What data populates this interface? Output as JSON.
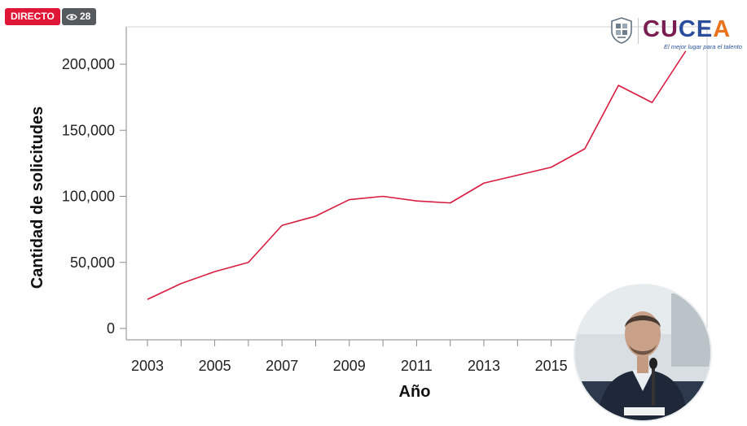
{
  "stream": {
    "live_label": "DIRECTO",
    "viewer_count": "28",
    "viewer_icon": "eye-icon"
  },
  "logo": {
    "brand_letters": [
      "C",
      "U",
      "C",
      "E",
      "A"
    ],
    "brand_colors": [
      "#7a1e52",
      "#7a1e52",
      "#2a4e9c",
      "#2a4e9c",
      "#e8731c"
    ],
    "tagline": "El mejor lugar para el talento"
  },
  "chart_data": {
    "type": "line",
    "title": "",
    "xlabel": "Año",
    "ylabel": "Cantidad de solicitudes",
    "x": [
      2003,
      2004,
      2005,
      2006,
      2007,
      2008,
      2009,
      2010,
      2011,
      2012,
      2013,
      2014,
      2015,
      2016,
      2017,
      2018,
      2019
    ],
    "series": [
      {
        "values": [
          22000,
          34000,
          43000,
          50000,
          78000,
          85000,
          97500,
          100000,
          96500,
          95000,
          110000,
          116000,
          122000,
          136000,
          184000,
          171000,
          210000
        ],
        "color": "#d81b3f"
      }
    ],
    "ylim": [
      0,
      230000
    ],
    "yticks": [
      0,
      50000,
      100000,
      150000,
      200000
    ],
    "ytick_labels": [
      "0",
      "50,000",
      "100,000",
      "150,000",
      "200,000"
    ],
    "xtick_labels": [
      "2003",
      "2005",
      "2007",
      "2009",
      "2011",
      "2013",
      "2015"
    ],
    "xtick_values": [
      2003,
      2005,
      2007,
      2009,
      2011,
      2013,
      2015
    ],
    "grid": false,
    "legend": "none"
  },
  "overlay": {
    "speaker_video": "webcam-pip"
  }
}
